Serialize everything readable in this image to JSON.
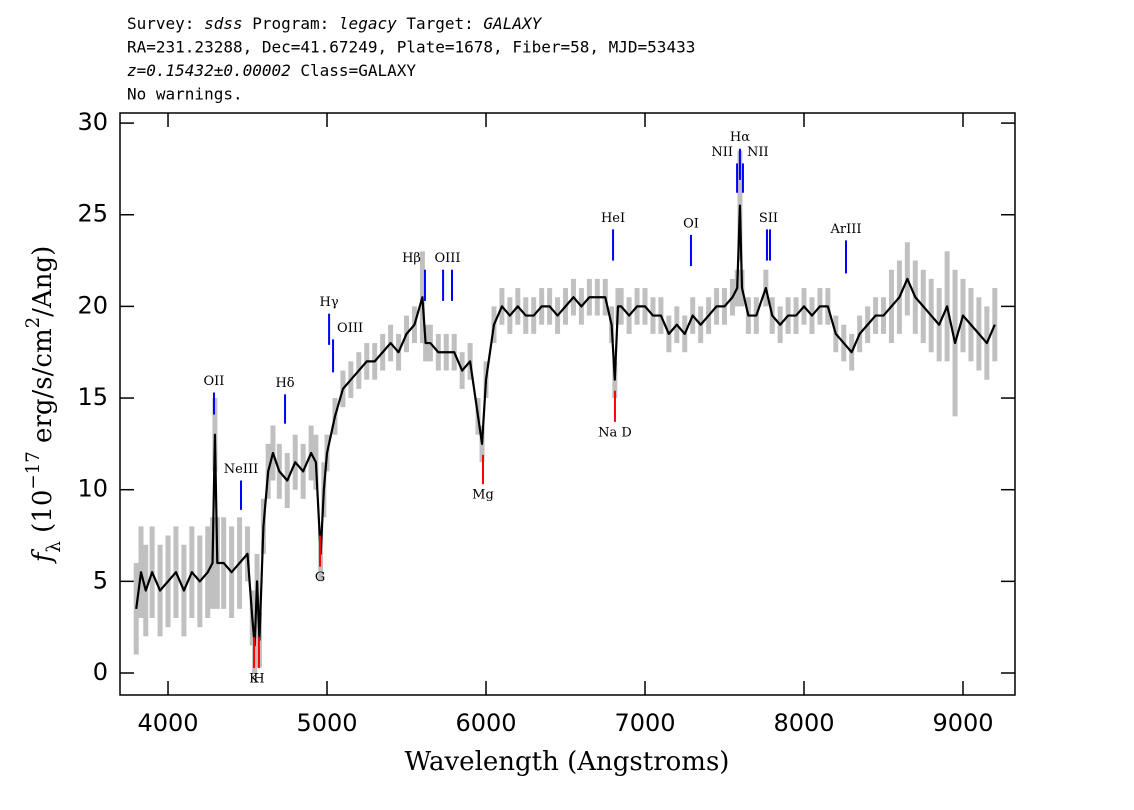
{
  "chart_data": {
    "type": "line",
    "title_lines": [
      [
        {
          "text": "Survey: "
        },
        {
          "text": "sdss",
          "italic": true
        },
        {
          "text": " Program: "
        },
        {
          "text": "legacy",
          "italic": true
        },
        {
          "text": " Target: "
        },
        {
          "text": "GALAXY",
          "italic": true
        }
      ],
      [
        {
          "text": "RA=231.23288, Dec=41.67249, Plate=1678, Fiber=58, MJD=53433"
        }
      ],
      [
        {
          "text": "z=0.15432±0.00002",
          "italic": true
        },
        {
          "text": " Class=GALAXY"
        }
      ],
      [
        {
          "text": "No warnings."
        }
      ]
    ],
    "xlabel": [
      {
        "text": "Wavelength (Angstroms)"
      }
    ],
    "ylabel": [
      {
        "text": "f",
        "italic": true
      },
      {
        "text": "λ",
        "sub": true
      },
      {
        "text": " (10"
      },
      {
        "text": "−17",
        "sup": true
      },
      {
        "text": " erg/s/cm"
      },
      {
        "text": "2",
        "sup": true
      },
      {
        "text": "/Ang)"
      }
    ],
    "xlim": [
      3698,
      9327
    ],
    "ylim": [
      -1.2,
      30.55
    ],
    "xticks": [
      4000,
      5000,
      6000,
      7000,
      8000,
      9000
    ],
    "yticks": [
      0,
      5,
      10,
      15,
      20,
      25,
      30
    ],
    "grid": false,
    "x": [
      3800,
      3830,
      3860,
      3900,
      3950,
      4000,
      4050,
      4100,
      4150,
      4200,
      4250,
      4280,
      4295,
      4310,
      4350,
      4400,
      4450,
      4500,
      4530,
      4545,
      4560,
      4575,
      4600,
      4630,
      4660,
      4700,
      4750,
      4800,
      4850,
      4900,
      4930,
      4960,
      4980,
      5000,
      5050,
      5100,
      5150,
      5200,
      5250,
      5300,
      5350,
      5400,
      5450,
      5500,
      5550,
      5600,
      5620,
      5650,
      5700,
      5750,
      5800,
      5850,
      5900,
      5950,
      5975,
      6000,
      6050,
      6100,
      6150,
      6200,
      6250,
      6300,
      6350,
      6400,
      6450,
      6500,
      6550,
      6600,
      6650,
      6700,
      6750,
      6790,
      6810,
      6830,
      6850,
      6900,
      6950,
      7000,
      7050,
      7100,
      7150,
      7200,
      7250,
      7300,
      7350,
      7400,
      7450,
      7500,
      7550,
      7580,
      7597,
      7610,
      7650,
      7700,
      7760,
      7800,
      7850,
      7900,
      7950,
      8000,
      8050,
      8100,
      8150,
      8200,
      8250,
      8300,
      8350,
      8400,
      8450,
      8500,
      8550,
      8600,
      8650,
      8700,
      8750,
      8800,
      8850,
      8900,
      8950,
      9000,
      9050,
      9100,
      9150,
      9200
    ],
    "series": [
      {
        "color": "#000000",
        "error_color": "#c0c0c0",
        "values": [
          3.5,
          5.5,
          4.5,
          5.5,
          4.5,
          5,
          5.5,
          4.5,
          5.5,
          5,
          5.5,
          6,
          13,
          6,
          6,
          5.5,
          6,
          6.5,
          3,
          1.5,
          5,
          1.8,
          8,
          11,
          12,
          11,
          10.5,
          11.5,
          11,
          12,
          11.5,
          6.5,
          10,
          12,
          14,
          15.5,
          16,
          16.5,
          17,
          17,
          17.5,
          18,
          17.5,
          18.5,
          19,
          20.5,
          18,
          18,
          17.5,
          17.5,
          17.5,
          16.5,
          17,
          14,
          12.5,
          16,
          19,
          20,
          19.5,
          20,
          19.5,
          19.5,
          20,
          20,
          19.5,
          20,
          20.5,
          20,
          20.5,
          20.5,
          20.5,
          19,
          16,
          20,
          20,
          19.5,
          20,
          20,
          19.5,
          19.5,
          18.5,
          19,
          18.5,
          19.5,
          19,
          19.5,
          20,
          20,
          20.5,
          21,
          25.5,
          21,
          19.5,
          19.5,
          21,
          19.5,
          19,
          19.5,
          19.5,
          20,
          19.5,
          20,
          20,
          18.5,
          18,
          17.5,
          18.5,
          19,
          19.5,
          19.5,
          20,
          20.5,
          21.5,
          20.5,
          20,
          19.5,
          19,
          20,
          18,
          19.5,
          19,
          18.5,
          18,
          19
        ],
        "errors": [
          2.5,
          2.5,
          2.5,
          2.5,
          2.5,
          2.5,
          2.5,
          2.5,
          2.5,
          2.5,
          2.5,
          2.5,
          2,
          2.5,
          2.5,
          2.5,
          2.5,
          1.5,
          1.5,
          1.5,
          1.5,
          1.5,
          1.5,
          1.5,
          1.5,
          1.5,
          1.5,
          1.5,
          1.5,
          1.5,
          1.5,
          1.5,
          1.5,
          1,
          1,
          1,
          1,
          1,
          1,
          1,
          1,
          1,
          1,
          1,
          1,
          2.5,
          1,
          1,
          1,
          1,
          1,
          1,
          1,
          1,
          1,
          1,
          1,
          1,
          1,
          1,
          1,
          1,
          1,
          1,
          1,
          1,
          1,
          1,
          1,
          1,
          1,
          1,
          1,
          1,
          1,
          1,
          1,
          1,
          1,
          1,
          1,
          1,
          1,
          1,
          1,
          1,
          1,
          1,
          1,
          1,
          3,
          1,
          1,
          1,
          1,
          1,
          1,
          1,
          1,
          1,
          1,
          1,
          1,
          1,
          1,
          1,
          1,
          1,
          1,
          1,
          2,
          2,
          2,
          2,
          2,
          2,
          2,
          3,
          4,
          2,
          2,
          2,
          2,
          2
        ]
      }
    ],
    "annotations": [
      {
        "label": "OII",
        "x": [
          4289
        ],
        "y": [
          14.1,
          15.3
        ],
        "color": "#0000ff"
      },
      {
        "label": "NeIII",
        "x": [
          4459
        ],
        "y": [
          8.9,
          10.5
        ],
        "color": "#0000ff"
      },
      {
        "label": "Hδ",
        "x": [
          4736
        ],
        "y": [
          13.6,
          15.2
        ],
        "color": "#0000ff"
      },
      {
        "label": "Hγ",
        "x": [
          5013
        ],
        "y": [
          17.9,
          19.6
        ],
        "color": "#0000ff"
      },
      {
        "label": "OIII",
        "x": [
          5038
        ],
        "y": [
          16.4,
          18.2
        ],
        "color": "#0000ff",
        "anchor": "start"
      },
      {
        "label": "Hβ",
        "x": [
          5616
        ],
        "y": [
          20.3,
          22.0
        ],
        "color": "#0000ff",
        "anchor": "end"
      },
      {
        "label": "OIII",
        "x": [
          5730,
          5786
        ],
        "y": [
          20.3,
          22.0
        ],
        "color": "#0000ff"
      },
      {
        "label": "HeI",
        "x": [
          6799
        ],
        "y": [
          22.5,
          24.2
        ],
        "color": "#0000ff"
      },
      {
        "label": "OI",
        "x": [
          7289
        ],
        "y": [
          22.2,
          23.9
        ],
        "color": "#0000ff"
      },
      {
        "label": "NII",
        "x": [
          7579
        ],
        "y": [
          26.2,
          27.8
        ],
        "color": "#0000ff",
        "anchor": "end"
      },
      {
        "label": "Hα",
        "x": [
          7597
        ],
        "y": [
          26.9,
          28.6
        ],
        "color": "#0000ff"
      },
      {
        "label": "NII",
        "x": [
          7616
        ],
        "y": [
          26.2,
          27.8
        ],
        "color": "#0000ff",
        "anchor": "start"
      },
      {
        "label": "SII",
        "x": [
          7767,
          7786
        ],
        "y": [
          22.5,
          24.2
        ],
        "color": "#0000ff"
      },
      {
        "label": "ArIII",
        "x": [
          8264
        ],
        "y": [
          21.8,
          23.6
        ],
        "color": "#0000ff"
      },
      {
        "label": "K",
        "x": [
          4541
        ],
        "y": [
          0.27,
          1.96
        ],
        "color": "#ff0000"
      },
      {
        "label": "H",
        "x": [
          4572
        ],
        "y": [
          0.27,
          1.96
        ],
        "color": "#ff0000"
      },
      {
        "label": "G",
        "x": [
          4956
        ],
        "y": [
          5.8,
          7.5
        ],
        "color": "#ff0000"
      },
      {
        "label": "Mg",
        "x": [
          5981
        ],
        "y": [
          10.3,
          11.9
        ],
        "color": "#ff0000"
      },
      {
        "label": "Na D",
        "x": [
          6811
        ],
        "y": [
          13.7,
          15.4
        ],
        "color": "#ff0000"
      }
    ]
  }
}
